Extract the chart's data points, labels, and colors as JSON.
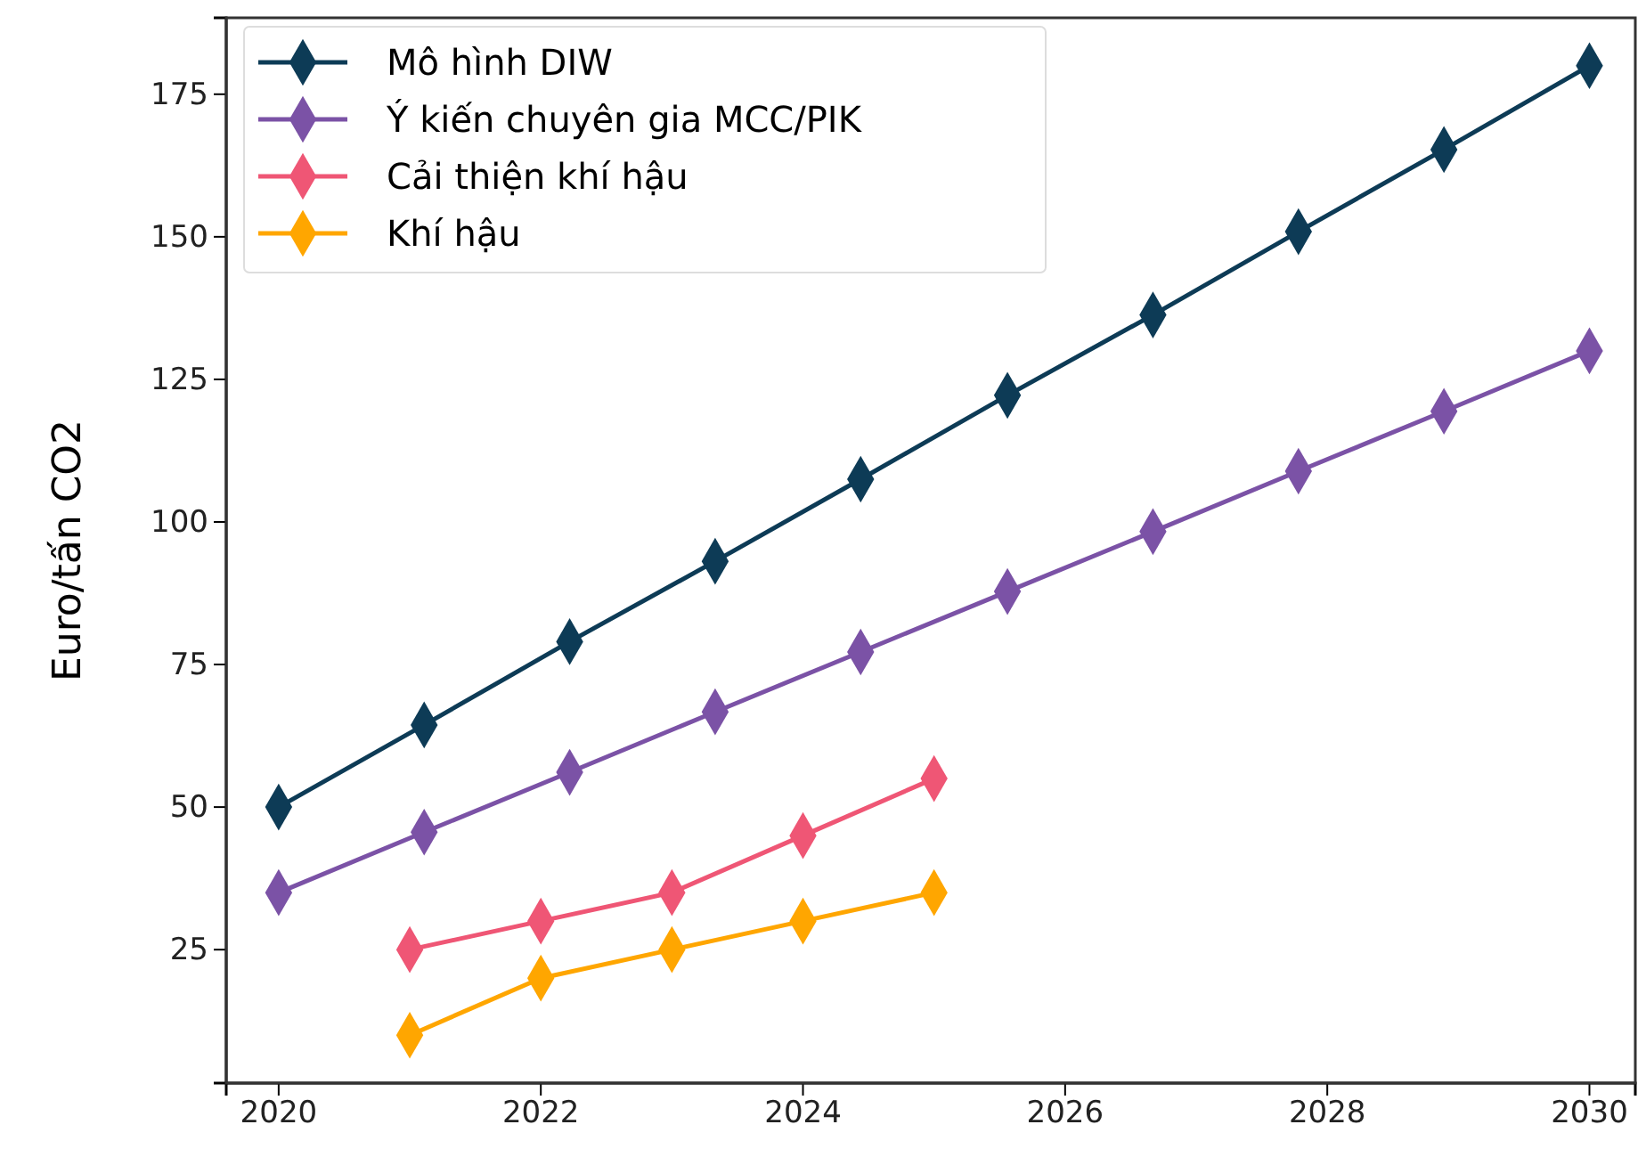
{
  "chart_data": {
    "type": "line",
    "ylabel": "Euro/tấn CO2",
    "xlim": [
      2019.6,
      2030.35
    ],
    "xticks": [
      2020,
      2022,
      2024,
      2026,
      2028,
      2030
    ],
    "ylim": [
      1.6,
      188.4
    ],
    "yticks": [
      25,
      50,
      75,
      100,
      125,
      150,
      175
    ],
    "grid": false,
    "legend": "top left",
    "marker": "diamond",
    "line_style": "solid",
    "series": [
      {
        "name": "Mô hình DIW",
        "color": "#0d3b56",
        "x": [
          2020,
          2021.11,
          2022.22,
          2023.33,
          2024.44,
          2025.56,
          2026.67,
          2027.78,
          2028.89,
          2030
        ],
        "values": [
          50,
          64.4,
          79,
          93.1,
          107.5,
          122.2,
          136.3,
          150.9,
          165.3,
          180
        ]
      },
      {
        "name": "Ý kiến chuyên gia MCC/PIK",
        "color": "#7b52a6",
        "x": [
          2020,
          2021.11,
          2022.22,
          2023.33,
          2024.44,
          2025.56,
          2026.67,
          2027.78,
          2028.89,
          2030
        ],
        "values": [
          35,
          45.6,
          56.1,
          66.7,
          77.2,
          87.8,
          98.3,
          108.9,
          119.4,
          130
        ]
      },
      {
        "name": "Cải thiện khí hậu",
        "color": "#ef5675",
        "x": [
          2021,
          2022,
          2023,
          2024,
          2025
        ],
        "values": [
          25,
          30,
          35,
          45,
          55
        ]
      },
      {
        "name": "Khí hậu",
        "color": "#ffa600",
        "x": [
          2021,
          2022,
          2023,
          2024,
          2025
        ],
        "values": [
          10,
          20,
          25,
          30,
          35
        ]
      }
    ]
  }
}
